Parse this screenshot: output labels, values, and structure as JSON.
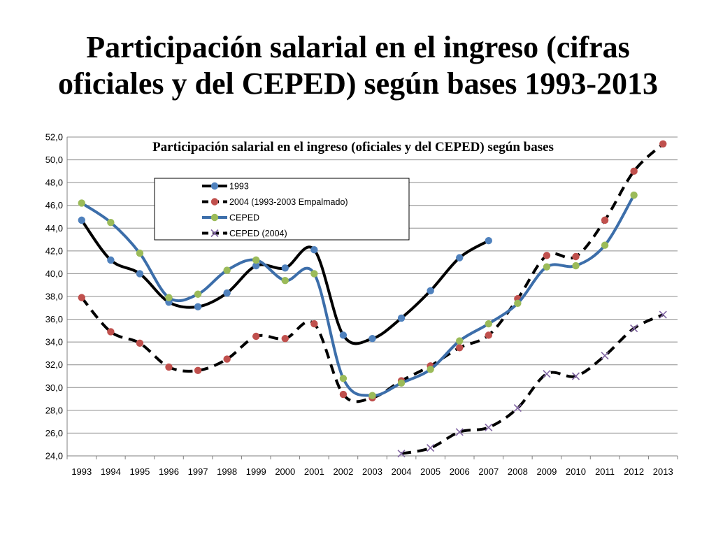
{
  "slide": {
    "title_line1": "Participación salarial en el ingreso  (cifras",
    "title_line2": "oficiales y del CEPED) según bases 1993-2013"
  },
  "chart_data": {
    "type": "line",
    "title": "Participación salarial en el ingreso  (oficiales y del CEPED) según bases",
    "xlabel": "",
    "ylabel": "",
    "categories": [
      "1993",
      "1994",
      "1995",
      "1996",
      "1997",
      "1998",
      "1999",
      "2000",
      "2001",
      "2002",
      "2003",
      "2004",
      "2005",
      "2006",
      "2007",
      "2008",
      "2009",
      "2010",
      "2011",
      "2012",
      "2013"
    ],
    "y_ticks": [
      "24,0",
      "26,0",
      "28,0",
      "30,0",
      "32,0",
      "34,0",
      "36,0",
      "38,0",
      "40,0",
      "42,0",
      "44,0",
      "46,0",
      "48,0",
      "50,0",
      "52,0"
    ],
    "ylim": [
      24,
      52
    ],
    "grid": true,
    "legend_position": "upper-left inside plot",
    "series": [
      {
        "name": "1993",
        "line_color": "#000000",
        "marker_color": "#4f81bd",
        "dashed": false,
        "marker": "circle",
        "values": [
          44.7,
          41.2,
          40.0,
          37.5,
          37.1,
          38.3,
          40.7,
          40.5,
          42.1,
          34.6,
          34.3,
          36.1,
          38.5,
          41.4,
          42.9,
          null,
          null,
          null,
          null,
          null,
          null
        ]
      },
      {
        "name": "2004 (1993-2003 Empalmado)",
        "line_color": "#000000",
        "marker_color": "#c0504d",
        "dashed": true,
        "marker": "circle",
        "values": [
          37.9,
          34.9,
          33.9,
          31.8,
          31.5,
          32.5,
          34.5,
          34.3,
          35.6,
          29.4,
          29.1,
          30.6,
          31.9,
          33.5,
          34.6,
          37.8,
          41.6,
          41.5,
          44.7,
          49.0,
          51.4
        ]
      },
      {
        "name": "CEPED",
        "line_color": "#3c6eaa",
        "marker_color": "#9bbb59",
        "dashed": false,
        "marker": "circle",
        "values": [
          46.2,
          44.5,
          41.8,
          37.9,
          38.2,
          40.3,
          41.2,
          39.4,
          40.0,
          30.8,
          29.3,
          30.4,
          31.6,
          34.1,
          35.6,
          37.4,
          40.6,
          40.7,
          42.5,
          46.9,
          null
        ]
      },
      {
        "name": "CEPED (2004)",
        "line_color": "#000000",
        "marker_color": "#8064a2",
        "dashed": true,
        "marker": "x",
        "values": [
          null,
          null,
          null,
          null,
          null,
          null,
          null,
          null,
          null,
          null,
          null,
          24.2,
          24.7,
          26.1,
          26.5,
          28.2,
          31.2,
          31.0,
          32.8,
          35.2,
          36.4
        ]
      }
    ]
  }
}
